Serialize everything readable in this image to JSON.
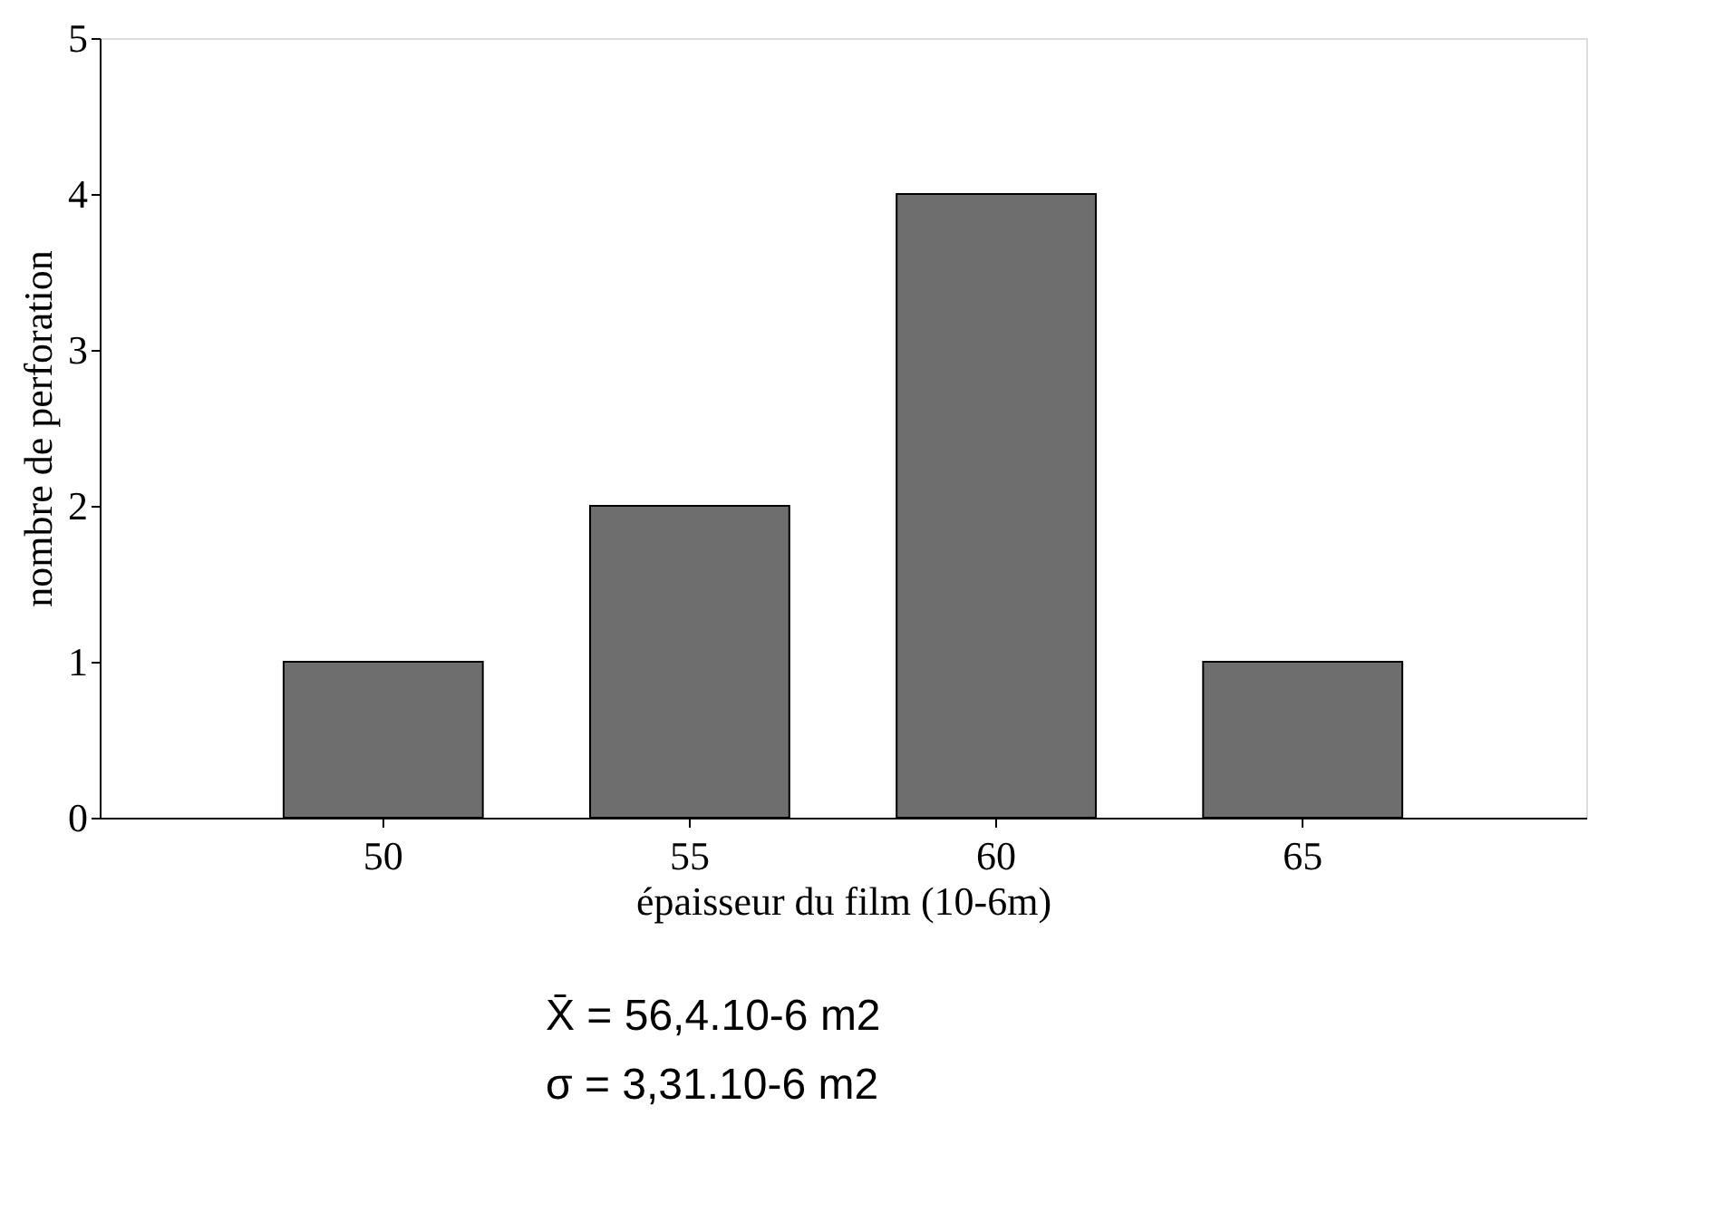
{
  "chart_data": {
    "type": "bar",
    "xlabel": "épaisseur du film (10-6m)",
    "ylabel": "nombre de perforation",
    "categories": [
      "50",
      "55",
      "60",
      "65"
    ],
    "values": [
      1,
      2,
      4,
      1
    ],
    "color": "#6e6e6e",
    "ylim": [
      0,
      5
    ],
    "yticks": [
      0,
      1,
      2,
      3,
      4,
      5
    ],
    "grid": false,
    "annotations": [
      "X̄ = 56,4.10-6 m2",
      "σ = 3,31.10-6 m2"
    ]
  }
}
